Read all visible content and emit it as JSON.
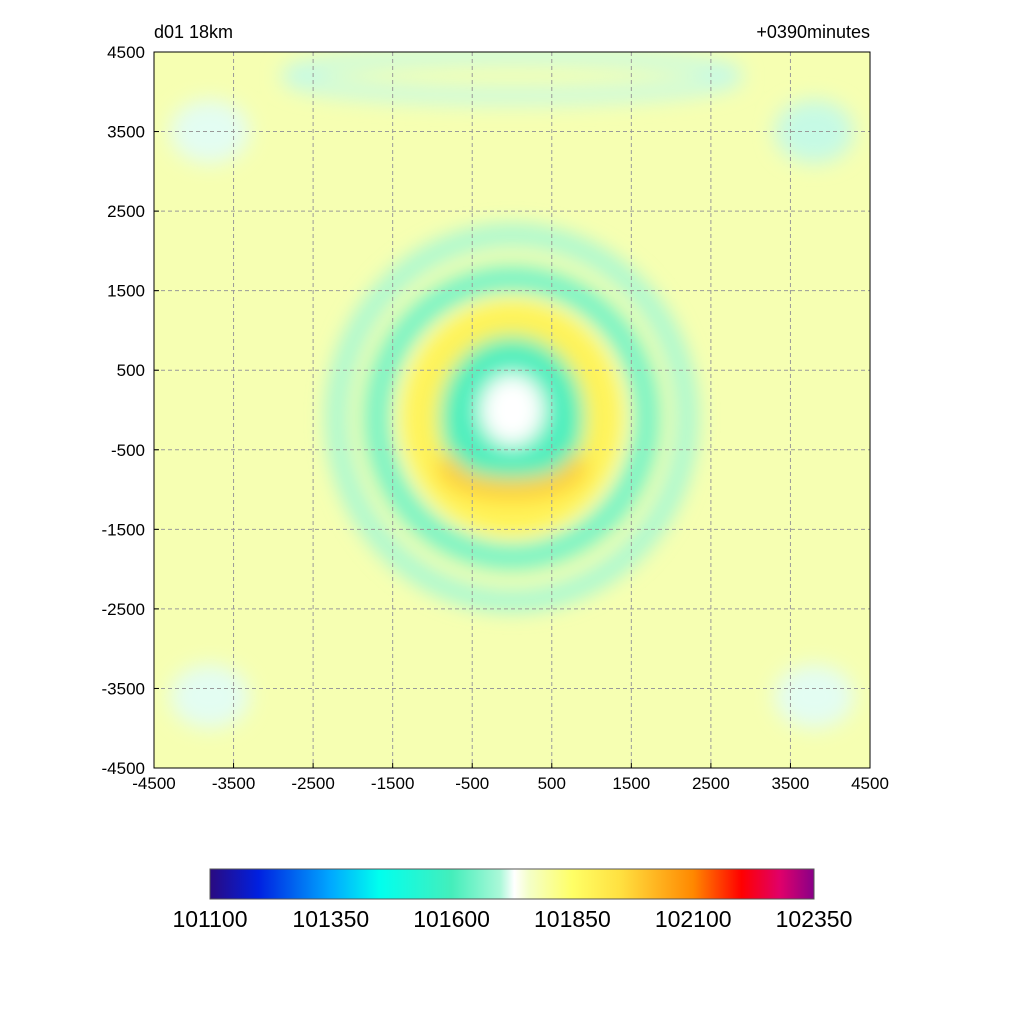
{
  "chart_data": {
    "type": "heatmap",
    "title_left": "d01 18km",
    "title_right": "+0390minutes",
    "xlabel": "",
    "ylabel": "",
    "xlim": [
      -4500,
      4500
    ],
    "ylim": [
      -4500,
      4500
    ],
    "x_ticks": [
      -4500,
      -3500,
      -2500,
      -1500,
      -500,
      500,
      1500,
      2500,
      3500,
      4500
    ],
    "y_ticks": [
      4500,
      3500,
      2500,
      1500,
      500,
      -500,
      -1500,
      -2500,
      -3500,
      -4500
    ],
    "grid": true,
    "background_value": 101780,
    "colorbar": {
      "min": 101100,
      "max": 102350,
      "tick_values": [
        101100,
        101350,
        101600,
        101850,
        102100,
        102350
      ],
      "tick_labels": [
        "101100",
        "101350",
        "101600",
        "101850",
        "102100",
        "102350"
      ],
      "stops": [
        {
          "value": 101100,
          "color": "#2a0a80"
        },
        {
          "value": 101200,
          "color": "#0020e0"
        },
        {
          "value": 101350,
          "color": "#00a8ff"
        },
        {
          "value": 101450,
          "color": "#00ffee"
        },
        {
          "value": 101600,
          "color": "#44eebb"
        },
        {
          "value": 101700,
          "color": "#aaf8d8"
        },
        {
          "value": 101730,
          "color": "#ffffff"
        },
        {
          "value": 101760,
          "color": "#f4ffc8"
        },
        {
          "value": 101850,
          "color": "#ffff66"
        },
        {
          "value": 101950,
          "color": "#ffe040"
        },
        {
          "value": 102100,
          "color": "#ff8800"
        },
        {
          "value": 102200,
          "color": "#ff0000"
        },
        {
          "value": 102280,
          "color": "#e0006a"
        },
        {
          "value": 102350,
          "color": "#880088"
        }
      ]
    },
    "field_features": [
      {
        "shape": "disk",
        "cx": 0,
        "cy": -100,
        "rx": 900,
        "ry": 1050,
        "value": 101610
      },
      {
        "shape": "disk",
        "cx": 0,
        "cy": 0,
        "rx": 400,
        "ry": 450,
        "value": 101730
      },
      {
        "shape": "ring",
        "cx": 0,
        "cy": -100,
        "rx": 1150,
        "ry": 1250,
        "width": 450,
        "value": 101890
      },
      {
        "shape": "arc",
        "cx": 0,
        "cy": -1000,
        "rx": 800,
        "ry": 300,
        "value": 101980
      },
      {
        "shape": "ring",
        "cx": 0,
        "cy": -100,
        "rx": 1700,
        "ry": 1750,
        "width": 300,
        "value": 101640
      },
      {
        "shape": "ring",
        "cx": 0,
        "cy": -100,
        "rx": 2200,
        "ry": 2300,
        "width": 250,
        "value": 101690
      },
      {
        "shape": "ring",
        "cx": 0,
        "cy": 4200,
        "rx": 2800,
        "ry": 250,
        "width": 200,
        "value": 101710
      },
      {
        "shape": "patch",
        "cx": -3800,
        "cy": 3500,
        "rx": 500,
        "ry": 400,
        "value": 101720
      },
      {
        "shape": "patch",
        "cx": 3800,
        "cy": 3500,
        "rx": 500,
        "ry": 400,
        "value": 101710
      },
      {
        "shape": "patch",
        "cx": -3800,
        "cy": -3600,
        "rx": 500,
        "ry": 400,
        "value": 101720
      },
      {
        "shape": "patch",
        "cx": 3800,
        "cy": -3600,
        "rx": 500,
        "ry": 400,
        "value": 101720
      }
    ]
  }
}
